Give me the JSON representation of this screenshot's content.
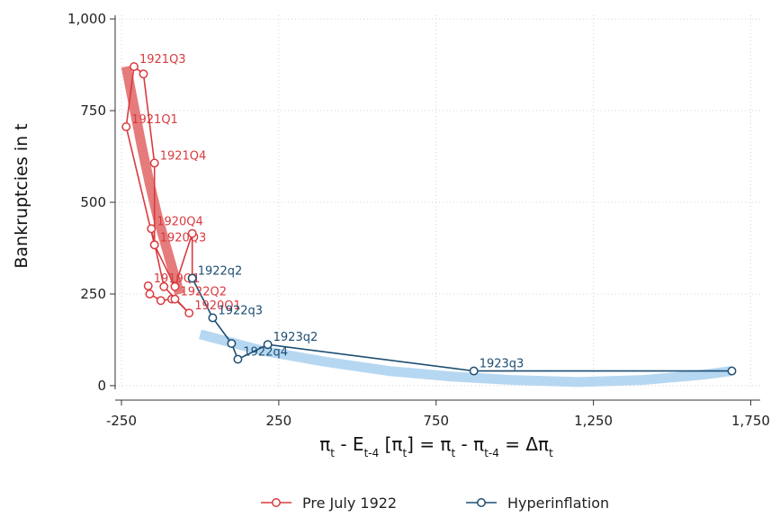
{
  "chart_data": {
    "type": "line",
    "xlabel": {
      "parts": [
        "π",
        "t",
        " - E",
        "t-4",
        " [π",
        "t",
        "] = π",
        "t",
        " - π",
        "t-4",
        " =  Δπ",
        "t"
      ]
    },
    "ylabel": "Bankruptcies in t",
    "xlim": [
      -270,
      1780
    ],
    "ylim": [
      -10,
      1010
    ],
    "xticks": [
      -250,
      250,
      750,
      1250,
      1750
    ],
    "xtick_labels": [
      "-250",
      "250",
      "750",
      "1,250",
      "1,750"
    ],
    "yticks": [
      0,
      250,
      500,
      750,
      1000
    ],
    "ytick_labels": [
      "0",
      "250",
      "500",
      "750",
      "1,000"
    ],
    "grid": true,
    "legend_position": "bottom",
    "series": [
      {
        "name": "Pre July 1922",
        "color": "#d93b3f",
        "points": [
          {
            "x": -165,
            "y": 272,
            "label": "1919Q1"
          },
          {
            "x": -160,
            "y": 250,
            "label": ""
          },
          {
            "x": -125,
            "y": 232,
            "label": ""
          },
          {
            "x": -90,
            "y": 236,
            "label": ""
          },
          {
            "x": -80,
            "y": 236,
            "label": "1922Q2"
          },
          {
            "x": -35,
            "y": 198,
            "label": "1920Q1"
          },
          {
            "x": -115,
            "y": 270,
            "label": ""
          },
          {
            "x": -155,
            "y": 428,
            "label": "1920Q4"
          },
          {
            "x": -145,
            "y": 384,
            "label": "1920Q3"
          },
          {
            "x": -145,
            "y": 607,
            "label": "1921Q4"
          },
          {
            "x": -180,
            "y": 850,
            "label": ""
          },
          {
            "x": -210,
            "y": 870,
            "label": "1921Q3"
          },
          {
            "x": -235,
            "y": 706,
            "label": "1921Q1"
          },
          {
            "x": -145,
            "y": 384,
            "label": ""
          },
          {
            "x": -80,
            "y": 270,
            "label": ""
          },
          {
            "x": -25,
            "y": 415,
            "label": ""
          },
          {
            "x": -25,
            "y": 293,
            "label": ""
          }
        ]
      },
      {
        "name": "Hyperinflation",
        "color": "#1d4e73",
        "points": [
          {
            "x": -25,
            "y": 293,
            "label": "1922q2"
          },
          {
            "x": 40,
            "y": 185,
            "label": "1922q3"
          },
          {
            "x": 100,
            "y": 115,
            "label": ""
          },
          {
            "x": 120,
            "y": 72,
            "label": "1922q4"
          },
          {
            "x": 215,
            "y": 112,
            "label": "1923q2"
          },
          {
            "x": 870,
            "y": 40,
            "label": "1923q3"
          },
          {
            "x": 1690,
            "y": 40,
            "label": ""
          }
        ]
      }
    ],
    "fits": [
      {
        "series": "Pre July 1922",
        "color": "#e06464",
        "x": [
          -235,
          -210,
          -185,
          -160,
          -135,
          -110,
          -85,
          -65
        ],
        "y": [
          870,
          760,
          650,
          550,
          460,
          385,
          310,
          250
        ]
      },
      {
        "series": "Hyperinflation",
        "color": "#a9d0ee",
        "x": [
          0,
          200,
          400,
          600,
          800,
          1000,
          1200,
          1400,
          1600,
          1690
        ],
        "y": [
          140,
          95,
          65,
          40,
          25,
          15,
          10,
          15,
          30,
          40
        ]
      }
    ]
  },
  "legend": [
    {
      "label": "Pre July 1922",
      "color": "#d93b3f"
    },
    {
      "label": "Hyperinflation",
      "color": "#1d4e73"
    }
  ]
}
